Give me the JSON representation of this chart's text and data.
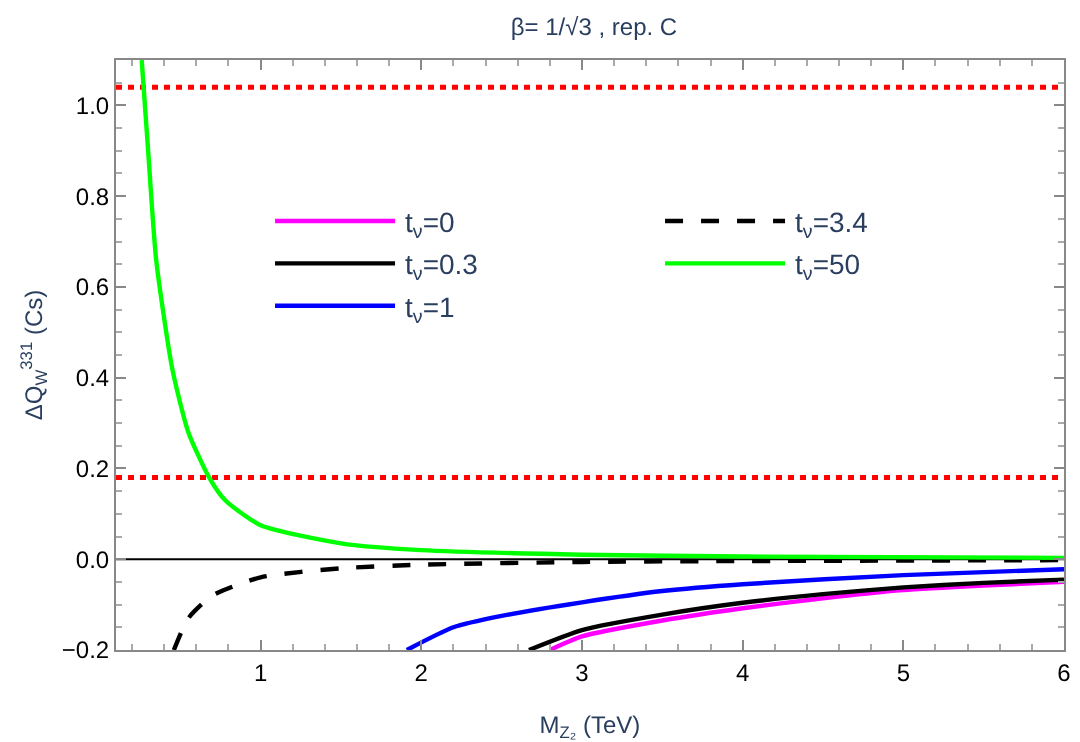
{
  "chart_data": {
    "type": "line",
    "title": "β= 1/√3 , rep. C",
    "xlabel": "M$_{Z₂}$ (TeV)",
    "ylabel": "ΔQ$_{W}$$^{331}$ (Cs)",
    "xlim": [
      0.1,
      6
    ],
    "ylim": [
      -0.2,
      1.1
    ],
    "xticks": [
      1,
      2,
      3,
      4,
      5,
      6
    ],
    "yticks": [
      {
        "value": -0.2,
        "label": "−0.2"
      },
      {
        "value": 0,
        "label": "0.0"
      },
      0.2,
      0.4,
      0.6,
      0.8,
      {
        "value": 1,
        "label": "1.0"
      }
    ],
    "grid": false,
    "legend": "top right",
    "marker": "none",
    "series": [
      {
        "name": "t$_{ν}$=0",
        "color": "#ff00ff",
        "line_style": "solid",
        "x": [
          2.8,
          3,
          3.5,
          4,
          4.5,
          5,
          5.5,
          6
        ],
        "values": [
          -0.2,
          -0.17,
          -0.135,
          -0.108,
          -0.086,
          -0.068,
          -0.058,
          -0.05
        ]
      },
      {
        "name": "t$_{ν}$=0.3",
        "color": "#000000",
        "line_style": "solid",
        "x": [
          2.67,
          3,
          3.5,
          4,
          4.5,
          5,
          5.5,
          6
        ],
        "values": [
          -0.2,
          -0.156,
          -0.122,
          -0.096,
          -0.077,
          -0.062,
          -0.052,
          -0.045
        ]
      },
      {
        "name": "t$_{ν}$=1",
        "color": "#0000ff",
        "line_style": "solid",
        "x": [
          1.91,
          2.2,
          2.5,
          3,
          3.5,
          4,
          5,
          6
        ],
        "values": [
          -0.2,
          -0.15,
          -0.125,
          -0.095,
          -0.07,
          -0.055,
          -0.035,
          -0.022
        ]
      },
      {
        "name": "t$_{ν}$=3.4",
        "color": "#000000",
        "line_style": "dashed",
        "x": [
          0.46,
          0.55,
          0.7,
          1,
          1.5,
          2,
          3,
          4,
          6
        ],
        "values": [
          -0.2,
          -0.13,
          -0.08,
          -0.04,
          -0.02,
          -0.012,
          -0.006,
          -0.004,
          -0.002
        ]
      },
      {
        "name": "t$_{ν}$=50",
        "color": "#00ff00",
        "line_style": "solid",
        "x": [
          0.26,
          0.3,
          0.35,
          0.45,
          0.55,
          0.68,
          0.78,
          1,
          1.5,
          2,
          3,
          4,
          6
        ],
        "values": [
          1.1,
          0.9,
          0.66,
          0.42,
          0.28,
          0.18,
          0.13,
          0.075,
          0.035,
          0.02,
          0.01,
          0.006,
          0.003
        ]
      }
    ],
    "ref_lines": [
      {
        "axis": "y",
        "value": 1.04,
        "color": "#ff0000",
        "line_style": "dotted"
      },
      {
        "axis": "y",
        "value": 0.18,
        "color": "#ff0000",
        "line_style": "dotted"
      },
      {
        "axis": "y",
        "value": 0,
        "color": "#000000",
        "line_style": "solid"
      }
    ]
  }
}
